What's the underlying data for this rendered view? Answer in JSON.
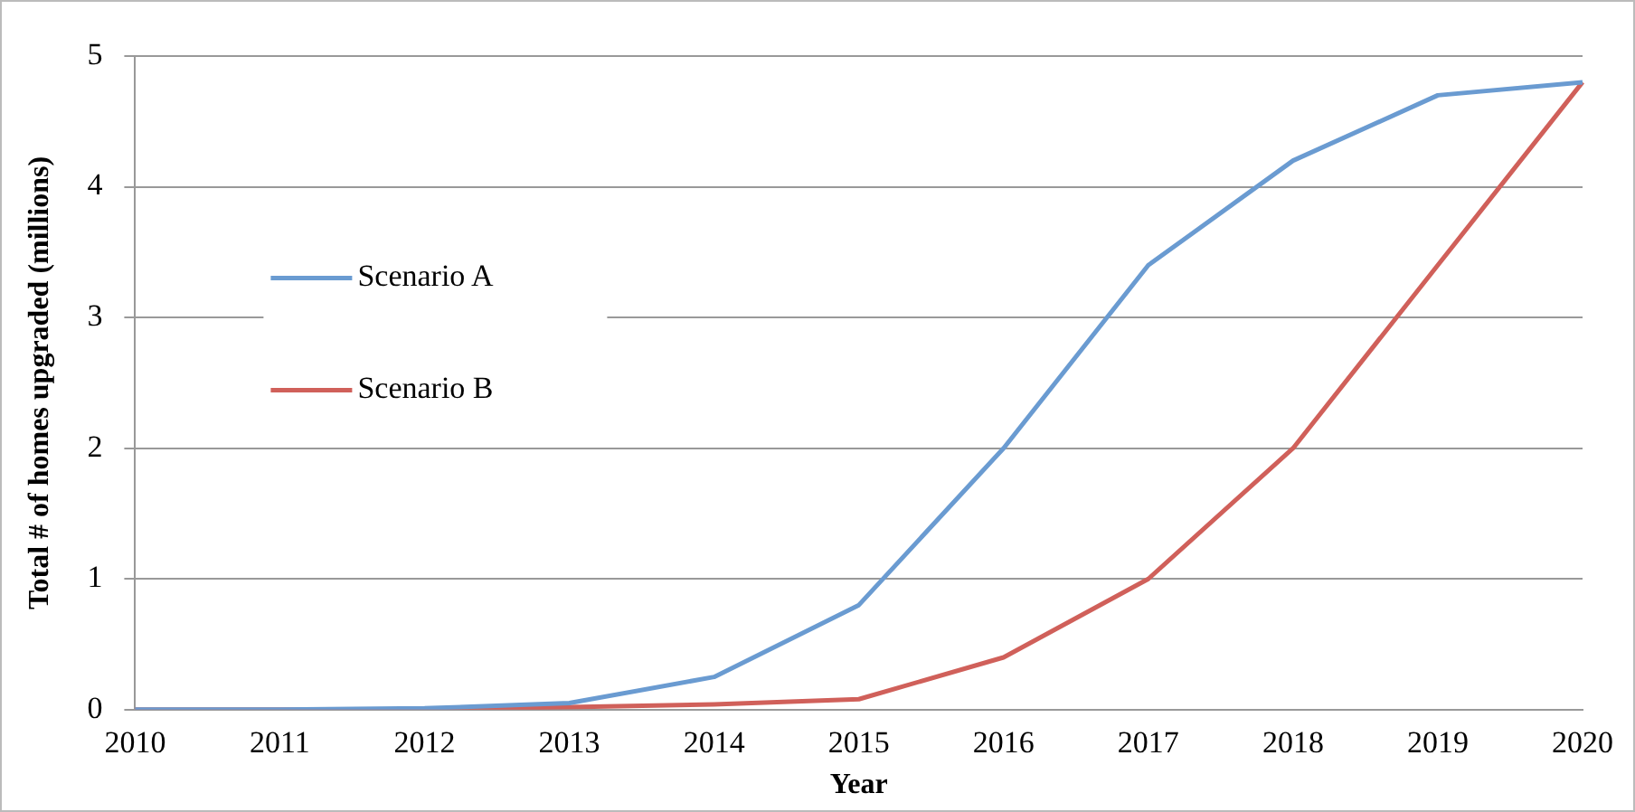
{
  "chart_data": {
    "type": "line",
    "xlabel": "Year",
    "ylabel": "Total # of homes upgraded (millions)",
    "categories": [
      "2010",
      "2011",
      "2012",
      "2013",
      "2014",
      "2015",
      "2016",
      "2017",
      "2018",
      "2019",
      "2020"
    ],
    "series": [
      {
        "name": "Scenario A",
        "color": "#6a9bd1",
        "values": [
          0,
          0,
          0.01,
          0.05,
          0.25,
          0.8,
          2.0,
          3.4,
          4.2,
          4.7,
          4.8
        ]
      },
      {
        "name": "Scenario B",
        "color": "#d0605a",
        "values": [
          0,
          0,
          0,
          0.02,
          0.04,
          0.08,
          0.4,
          1.0,
          2.0,
          3.4,
          4.8
        ]
      }
    ],
    "ylim": [
      0,
      5
    ],
    "yticks": [
      0,
      1,
      2,
      3,
      4,
      5
    ],
    "grid": "y",
    "legend": "left",
    "marker": "none",
    "line_style": "solid"
  }
}
